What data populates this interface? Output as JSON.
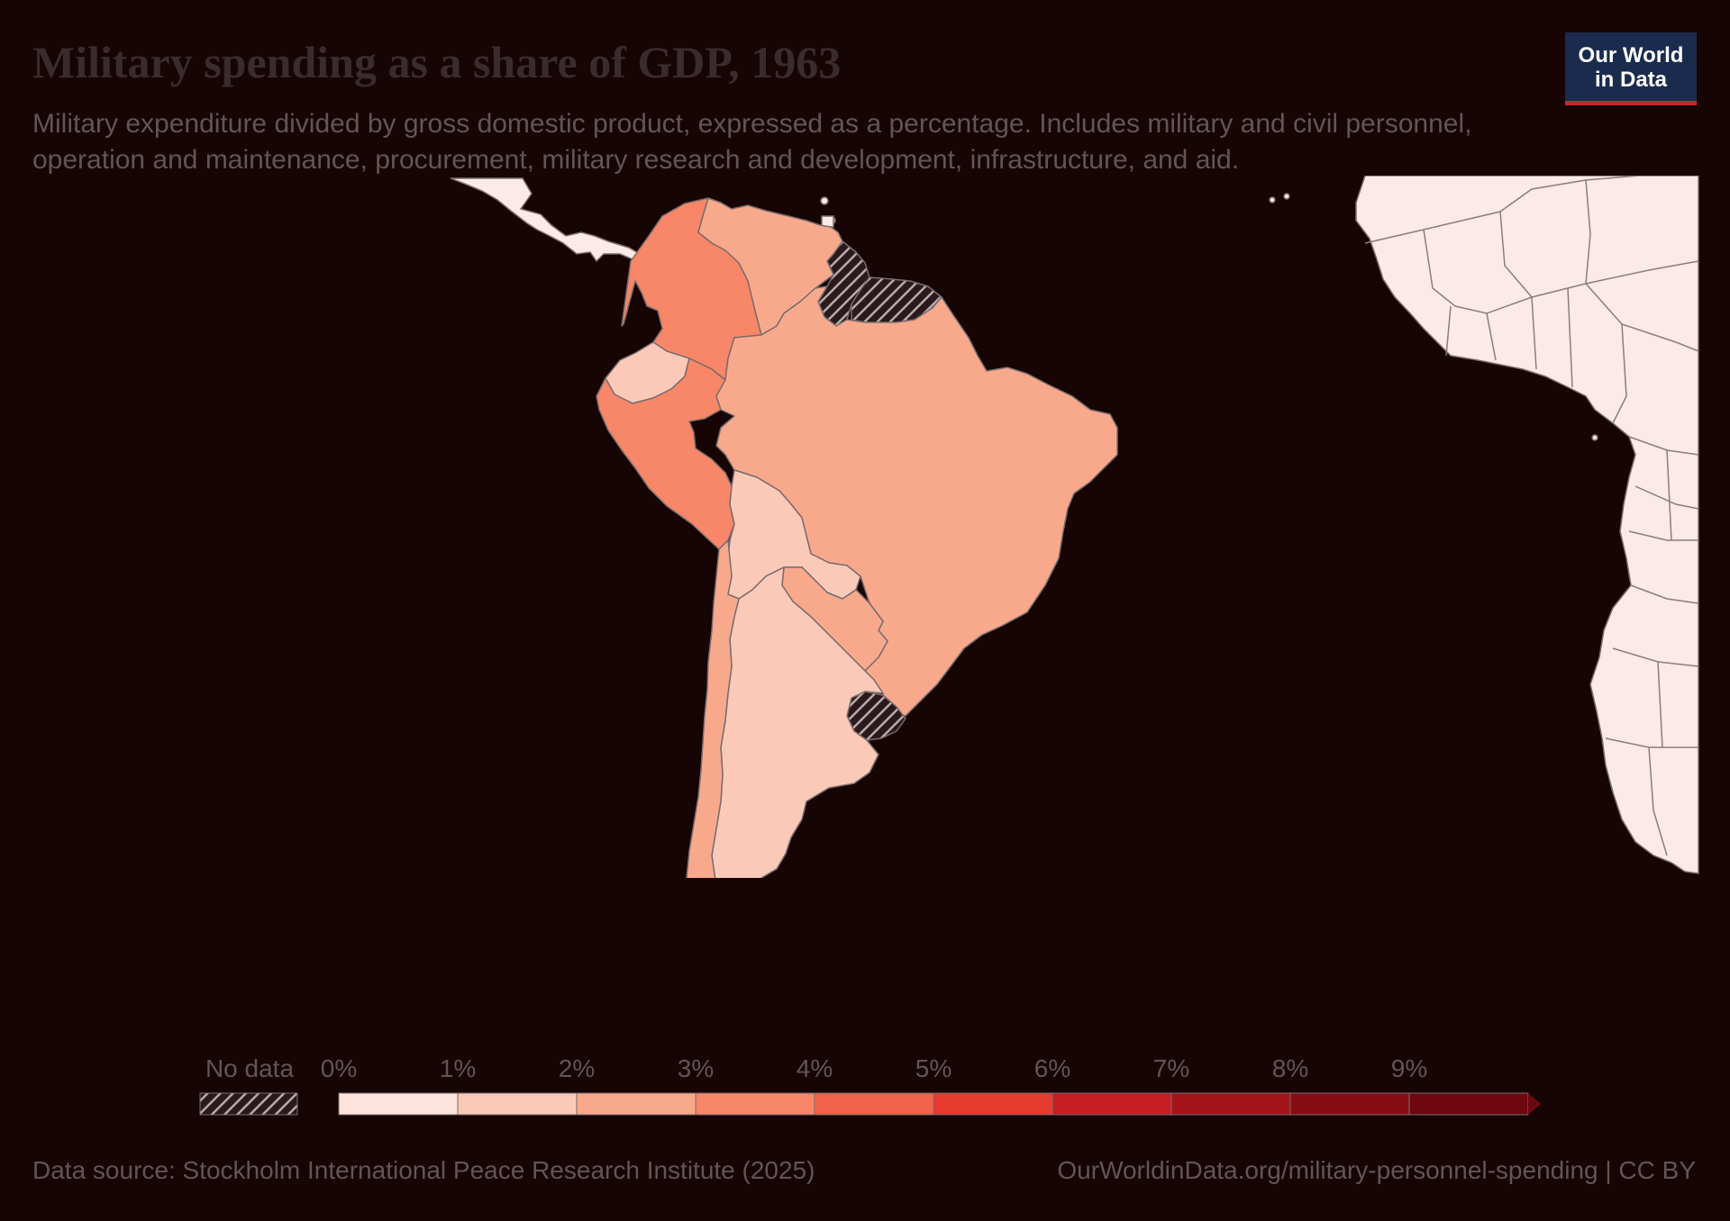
{
  "title": "Military spending as a share of GDP, 1963",
  "subtitle": "Military expenditure divided by gross domestic product, expressed as a percentage. Includes military and civil personnel, operation and maintenance, procurement, military research and development, infrastructure, and aid.",
  "logo": {
    "line1": "Our World",
    "line2": "in Data"
  },
  "footer": {
    "source": "Data source: Stockholm International Peace Research Institute (2025)",
    "url": "OurWorldinData.org/military-personnel-spending | CC BY"
  },
  "legend": {
    "no_data_label": "No data",
    "bins": [
      {
        "label": "0%",
        "color": "#fde3db"
      },
      {
        "label": "1%",
        "color": "#fbc9b8"
      },
      {
        "label": "2%",
        "color": "#f8a98c"
      },
      {
        "label": "3%",
        "color": "#f78768"
      },
      {
        "label": "4%",
        "color": "#f2634b"
      },
      {
        "label": "5%",
        "color": "#e63a2d"
      },
      {
        "label": "6%",
        "color": "#c81d20"
      },
      {
        "label": "7%",
        "color": "#a5141a"
      },
      {
        "label": "8%",
        "color": "#870d15"
      },
      {
        "label": "9%",
        "color": "#6e0810"
      }
    ]
  },
  "colors": {
    "background": "#170405",
    "other_regions": "#fde9e7",
    "border": "#7a6c6d",
    "no_data_hatch": "#b8aaab"
  },
  "regions": [
    {
      "name": "Colombia",
      "value": 3.2
    },
    {
      "name": "Venezuela",
      "value": 2.3
    },
    {
      "name": "Guyana",
      "value": null
    },
    {
      "name": "Suriname",
      "value": null
    },
    {
      "name": "Ecuador",
      "value": 1.5
    },
    {
      "name": "Peru",
      "value": 3.4
    },
    {
      "name": "Brazil",
      "value": 2.4
    },
    {
      "name": "Bolivia",
      "value": 1.6
    },
    {
      "name": "Paraguay",
      "value": 2.2
    },
    {
      "name": "Uruguay",
      "value": null
    },
    {
      "name": "Argentina",
      "value": 1.7
    },
    {
      "name": "Chile",
      "value": 2.6
    }
  ]
}
